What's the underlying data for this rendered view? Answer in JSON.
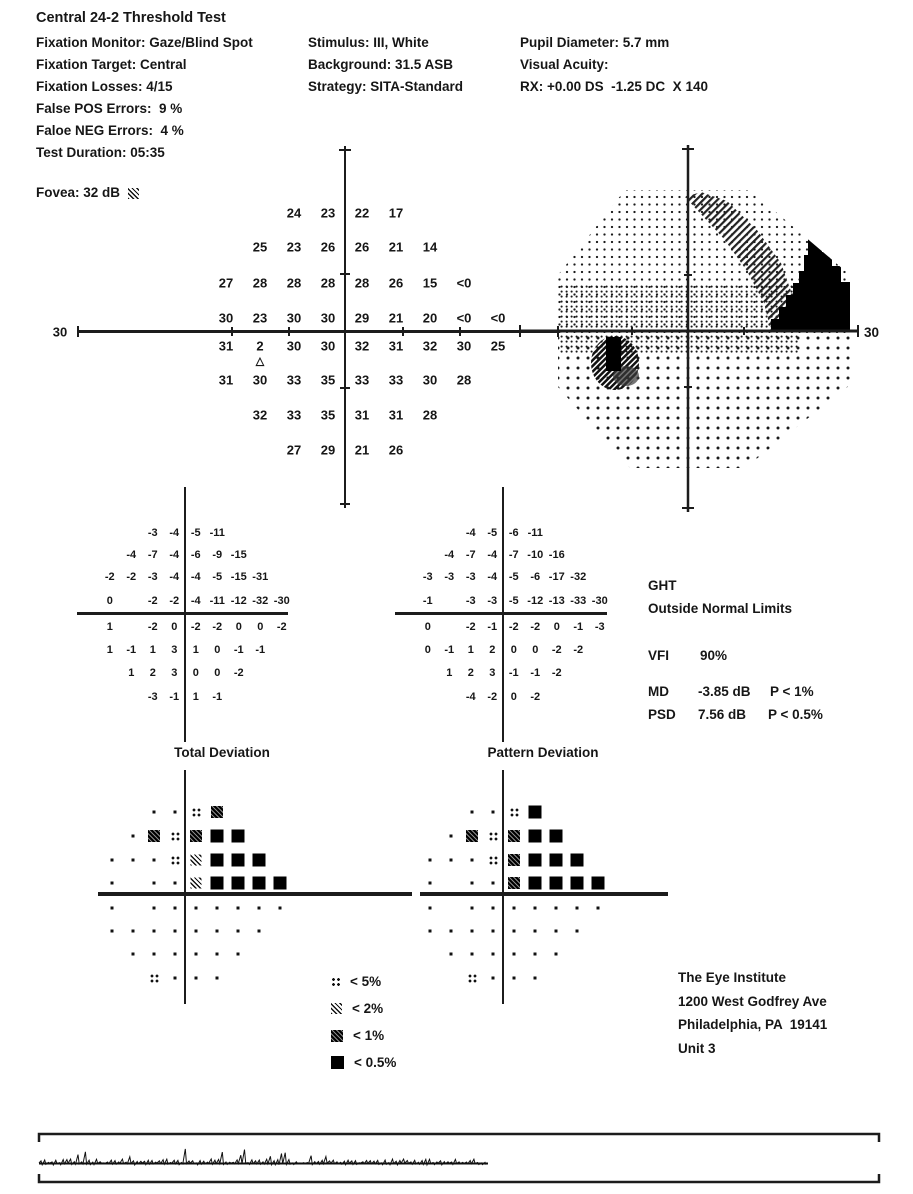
{
  "title": "Central 24-2 Threshold Test",
  "header": {
    "left": [
      "Fixation Monitor: Gaze/Blind Spot",
      "Fixation Target: Central",
      "Fixation Losses: 4/15",
      "False POS Errors:  9 %",
      "Faloe NEG Errors:  4 %",
      "Test Duration: 05:35"
    ],
    "fovea_label": "Fovea: 32 dB  ",
    "middle": [
      "Stimulus: III, White",
      "Background: 31.5 ASB",
      "Strategy: SITA-Standard"
    ],
    "right": [
      "Pupil Diameter: 5.7 mm",
      "Visual Acuity:",
      "RX: +0.00 DS  -1.25 DC  X 140"
    ]
  },
  "threshold_plot": {
    "axis_label": "30",
    "blind_spot_marker": "△",
    "rows": [
      {
        "start": 4,
        "values": [
          24,
          23,
          22,
          17
        ]
      },
      {
        "start": 3,
        "values": [
          25,
          23,
          26,
          26,
          21,
          14
        ]
      },
      {
        "start": 2,
        "values": [
          27,
          28,
          28,
          28,
          28,
          26,
          15,
          "<0"
        ]
      },
      {
        "start": 2,
        "values": [
          30,
          23,
          30,
          30,
          29,
          21,
          20,
          "<0",
          "<0"
        ]
      },
      {
        "start": 2,
        "values": [
          31,
          2,
          30,
          30,
          32,
          31,
          32,
          30,
          25
        ]
      },
      {
        "start": 2,
        "values": [
          31,
          30,
          33,
          35,
          33,
          33,
          30,
          28
        ]
      },
      {
        "start": 3,
        "values": [
          32,
          33,
          35,
          31,
          31,
          28
        ]
      },
      {
        "start": 4,
        "values": [
          27,
          29,
          21,
          26
        ]
      }
    ]
  },
  "grayscale_plot": {
    "axis_label": "30"
  },
  "total_deviation": {
    "title": "Total Deviation",
    "rows": [
      {
        "start": 4,
        "values": [
          -3,
          -4,
          -5,
          -11
        ]
      },
      {
        "start": 3,
        "values": [
          -4,
          -7,
          -4,
          -6,
          -9,
          -15
        ]
      },
      {
        "start": 2,
        "values": [
          -2,
          -2,
          -3,
          -4,
          -4,
          -5,
          -15,
          -31
        ]
      },
      {
        "start": 2,
        "values": [
          0,
          null,
          -2,
          -2,
          -4,
          -11,
          -12,
          -32,
          -30
        ]
      },
      {
        "start": 2,
        "values": [
          1,
          null,
          -2,
          0,
          -2,
          -2,
          0,
          0,
          -2
        ]
      },
      {
        "start": 2,
        "values": [
          1,
          -1,
          1,
          3,
          1,
          0,
          -1,
          -1
        ]
      },
      {
        "start": 3,
        "values": [
          1,
          2,
          3,
          0,
          0,
          -2
        ]
      },
      {
        "start": 4,
        "values": [
          -3,
          -1,
          1,
          -1
        ]
      }
    ]
  },
  "pattern_deviation": {
    "title": "Pattern Deviation",
    "rows": [
      {
        "start": 4,
        "values": [
          -4,
          -5,
          -6,
          -11
        ]
      },
      {
        "start": 3,
        "values": [
          -4,
          -7,
          -4,
          -7,
          -10,
          -16
        ]
      },
      {
        "start": 2,
        "values": [
          -3,
          -3,
          -3,
          -4,
          -5,
          -6,
          -17,
          -32
        ]
      },
      {
        "start": 2,
        "values": [
          -1,
          null,
          -3,
          -3,
          -5,
          -12,
          -13,
          -33,
          -30
        ]
      },
      {
        "start": 2,
        "values": [
          0,
          null,
          -2,
          -1,
          -2,
          -2,
          0,
          -1,
          -3
        ]
      },
      {
        "start": 2,
        "values": [
          0,
          -1,
          1,
          2,
          0,
          0,
          -2,
          -2
        ]
      },
      {
        "start": 3,
        "values": [
          1,
          2,
          3,
          -1,
          -1,
          -2
        ]
      },
      {
        "start": 4,
        "values": [
          -4,
          -2,
          0,
          -2
        ]
      }
    ]
  },
  "total_deviation_prob": {
    "rows": [
      {
        "start": 4,
        "values": [
          "dot",
          "dot",
          "p5",
          "p1"
        ]
      },
      {
        "start": 3,
        "values": [
          "dot",
          "p1",
          "p5",
          "p1",
          "p05",
          "p05"
        ]
      },
      {
        "start": 2,
        "values": [
          "dot",
          "dot",
          "dot",
          "p5",
          "p2",
          "p05",
          "p05",
          "p05"
        ]
      },
      {
        "start": 2,
        "values": [
          "dot",
          null,
          "dot",
          "dot",
          "p2",
          "p05",
          "p05",
          "p05",
          "p05"
        ]
      },
      {
        "start": 2,
        "values": [
          "dot",
          null,
          "dot",
          "dot",
          "dot",
          "dot",
          "dot",
          "dot",
          "dot"
        ]
      },
      {
        "start": 2,
        "values": [
          "dot",
          "dot",
          "dot",
          "dot",
          "dot",
          "dot",
          "dot",
          "dot"
        ]
      },
      {
        "start": 3,
        "values": [
          "dot",
          "dot",
          "dot",
          "dot",
          "dot",
          "dot"
        ]
      },
      {
        "start": 4,
        "values": [
          "p5",
          "dot",
          "dot",
          "dot"
        ]
      }
    ]
  },
  "pattern_deviation_prob": {
    "rows": [
      {
        "start": 4,
        "values": [
          "dot",
          "dot",
          "p5",
          "p05"
        ]
      },
      {
        "start": 3,
        "values": [
          "dot",
          "p1",
          "p5",
          "p1",
          "p05",
          "p05"
        ]
      },
      {
        "start": 2,
        "values": [
          "dot",
          "dot",
          "dot",
          "p5",
          "p1",
          "p05",
          "p05",
          "p05"
        ]
      },
      {
        "start": 2,
        "values": [
          "dot",
          null,
          "dot",
          "dot",
          "p1",
          "p05",
          "p05",
          "p05",
          "p05"
        ]
      },
      {
        "start": 2,
        "values": [
          "dot",
          null,
          "dot",
          "dot",
          "dot",
          "dot",
          "dot",
          "dot",
          "dot"
        ]
      },
      {
        "start": 2,
        "values": [
          "dot",
          "dot",
          "dot",
          "dot",
          "dot",
          "dot",
          "dot",
          "dot"
        ]
      },
      {
        "start": 3,
        "values": [
          "dot",
          "dot",
          "dot",
          "dot",
          "dot",
          "dot"
        ]
      },
      {
        "start": 4,
        "values": [
          "p5",
          "dot",
          "dot",
          "dot"
        ]
      }
    ]
  },
  "ght": {
    "name": "GHT",
    "result": "Outside Normal Limits"
  },
  "indices": {
    "vfi_label": "VFI",
    "vfi_value": "90%",
    "md_label": "MD",
    "md_value": "-3.85 dB",
    "md_p": "P < 1%",
    "psd_label": "PSD",
    "psd_value": "7.56 dB",
    "psd_p": "P < 0.5%"
  },
  "legend": [
    {
      "symbol": "p5",
      "label": "< 5%"
    },
    {
      "symbol": "p2",
      "label": "< 2%"
    },
    {
      "symbol": "p1",
      "label": "< 1%"
    },
    {
      "symbol": "p05",
      "label": "< 0.5%"
    }
  ],
  "facility": [
    "The Eye Institute",
    "1200 West Godfrey Ave",
    "Philadelphia, PA  19141",
    "Unit 3"
  ],
  "colors": {
    "ink": "#161616"
  }
}
